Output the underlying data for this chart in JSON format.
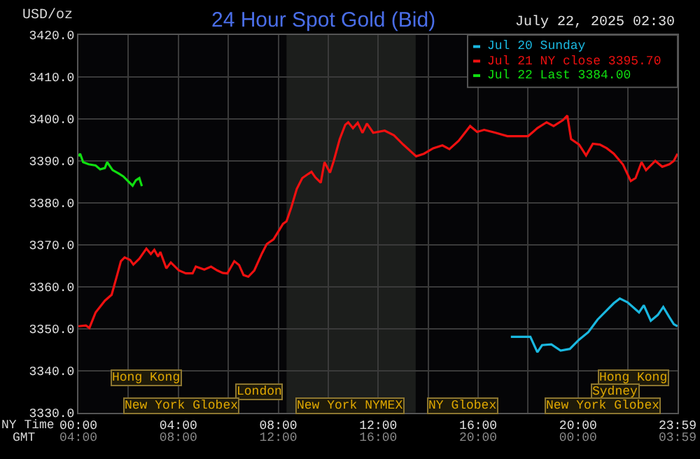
{
  "chart_data": {
    "type": "line",
    "title": "24 Hour Spot Gold (Bid)",
    "ylabel": "USD/oz",
    "xlabel": "NY Time",
    "x2label": "GMT",
    "annotations": [
      "July 22, 2025 02:30",
      "Hong Kong",
      "Hong Kong",
      "London",
      "Sydney",
      "New York Globex",
      "New York NYMEX",
      "NY Globex",
      "New York Globex"
    ],
    "xlim": [
      0,
      23.983
    ],
    "xticks": [
      {
        "value": 0,
        "label": "00:00"
      },
      {
        "value": 2,
        "label": null
      },
      {
        "value": 4,
        "label": "04:00"
      },
      {
        "value": 6,
        "label": null
      },
      {
        "value": 8,
        "label": "08:00"
      },
      {
        "value": 10,
        "label": null
      },
      {
        "value": 12,
        "label": "12:00"
      },
      {
        "value": 14,
        "label": null
      },
      {
        "value": 16,
        "label": "16:00"
      },
      {
        "value": 18,
        "label": null
      },
      {
        "value": 20,
        "label": "20:00"
      },
      {
        "value": 22,
        "label": null
      },
      {
        "value": 23.983,
        "label": "23:59"
      }
    ],
    "x2lim": [
      "2025-07-21T04:00",
      "2025-07-22T03:59"
    ],
    "x2ticks": [
      {
        "value": "2025-07-21T04:00",
        "label": "04:00"
      },
      {
        "value": "2025-07-21T08:00",
        "label": "08:00"
      },
      {
        "value": "2025-07-21T12:00",
        "label": "12:00"
      },
      {
        "value": "2025-07-21T16:00",
        "label": "16:00"
      },
      {
        "value": "2025-07-21T20:00",
        "label": "20:00"
      },
      {
        "value": "2025-07-22T00:00",
        "label": "00:00"
      },
      {
        "value": "2025-07-22T03:59",
        "label": "03:59"
      }
    ],
    "ylim": [
      3330,
      3420
    ],
    "yticks": [
      {
        "value": 3330,
        "label": "3330.0"
      },
      {
        "value": 3340,
        "label": "3340.0"
      },
      {
        "value": 3350,
        "label": "3350.0"
      },
      {
        "value": 3360,
        "label": "3360.0"
      },
      {
        "value": 3370,
        "label": "3370.0"
      },
      {
        "value": 3380,
        "label": "3380.0"
      },
      {
        "value": 3390,
        "label": "3390.0"
      },
      {
        "value": 3400,
        "label": "3400.0"
      },
      {
        "value": 3410,
        "label": "3410.0"
      },
      {
        "value": 3420,
        "label": "3420.0"
      }
    ],
    "grid": true,
    "legend": "top right",
    "line_style": "solid",
    "bands": [
      {
        "axis": "x",
        "from": 8.33,
        "to": 13.5,
        "color": "#1c1e1c"
      }
    ],
    "series": [
      {
        "name": "Jul 20 Sunday",
        "color": "#1ab8e0",
        "x": [
          17.31,
          18.09,
          18.37,
          18.56,
          18.93,
          19.3,
          19.67,
          20.04,
          20.41,
          20.78,
          21.15,
          21.43,
          21.67,
          21.98,
          22.44,
          22.63,
          22.91,
          23.19,
          23.41,
          23.65,
          23.83,
          23.98
        ],
        "values": [
          3348.1,
          3348.1,
          3344.4,
          3346.1,
          3346.3,
          3344.8,
          3345.2,
          3347.4,
          3349.2,
          3352.2,
          3354.4,
          3356.1,
          3357.2,
          3356.3,
          3353.9,
          3355.6,
          3351.9,
          3353.3,
          3355.2,
          3352.8,
          3351.1,
          3350.6
        ]
      },
      {
        "name": "Jul 21 NY close 3395.70",
        "color": "#f01010",
        "x": [
          0,
          0.3,
          0.44,
          0.69,
          1.06,
          1.33,
          1.56,
          1.7,
          1.85,
          2.07,
          2.2,
          2.44,
          2.72,
          2.9,
          3.04,
          3.19,
          3.28,
          3.52,
          3.7,
          4.02,
          4.3,
          4.57,
          4.7,
          5.04,
          5.31,
          5.56,
          5.78,
          5.96,
          6.24,
          6.43,
          6.61,
          6.8,
          7.04,
          7.35,
          7.54,
          7.81,
          8.19,
          8.33,
          8.52,
          8.74,
          8.96,
          9.2,
          9.33,
          9.48,
          9.7,
          9.85,
          10.07,
          10.22,
          10.46,
          10.68,
          10.8,
          10.99,
          11.18,
          11.37,
          11.55,
          11.8,
          12.26,
          12.63,
          13.0,
          13.52,
          13.83,
          14.2,
          14.57,
          14.85,
          15.22,
          15.68,
          15.96,
          16.24,
          16.7,
          17.17,
          18.0,
          18.37,
          18.74,
          19.02,
          19.39,
          19.57,
          19.72,
          20.04,
          20.32,
          20.59,
          20.87,
          21.15,
          21.43,
          21.8,
          22.11,
          22.3,
          22.54,
          22.72,
          23.09,
          23.37,
          23.65,
          23.83,
          23.98
        ],
        "values": [
          3350.6,
          3350.8,
          3350.2,
          3353.9,
          3356.7,
          3358.1,
          3363,
          3366.1,
          3367,
          3366.4,
          3365.3,
          3366.7,
          3369.1,
          3367.8,
          3368.8,
          3367.2,
          3368.3,
          3364.4,
          3365.8,
          3363.9,
          3363.2,
          3363.2,
          3364.8,
          3364.1,
          3364.8,
          3363.9,
          3363.3,
          3363.2,
          3366.1,
          3365.2,
          3362.8,
          3362.4,
          3363.9,
          3368,
          3370.2,
          3371.3,
          3375,
          3375.6,
          3378.9,
          3383.3,
          3385.9,
          3386.9,
          3387.4,
          3386.1,
          3384.8,
          3389.7,
          3387.2,
          3390,
          3395.2,
          3398.6,
          3399.2,
          3397.8,
          3399.1,
          3396.7,
          3398.9,
          3396.7,
          3397.2,
          3396.1,
          3393.9,
          3391.1,
          3391.7,
          3393,
          3393.7,
          3392.8,
          3394.8,
          3398.3,
          3396.9,
          3397.4,
          3396.7,
          3395.9,
          3395.9,
          3397.8,
          3399.2,
          3398.3,
          3399.7,
          3400.8,
          3395.2,
          3393.9,
          3391.3,
          3394.1,
          3393.9,
          3393,
          3391.7,
          3389.1,
          3385.2,
          3385.9,
          3389.7,
          3387.8,
          3390,
          3388.6,
          3389.2,
          3390,
          3391.7
        ]
      },
      {
        "name": "Jul 22 Last 3384.00",
        "color": "#10e010",
        "x": [
          0,
          0.07,
          0.19,
          0.41,
          0.69,
          0.87,
          1.06,
          1.15,
          1.37,
          1.61,
          1.8,
          1.98,
          2.17,
          2.3,
          2.44,
          2.54
        ],
        "values": [
          3391.1,
          3391.7,
          3389.7,
          3389.2,
          3388.9,
          3388,
          3388.3,
          3389.7,
          3387.8,
          3387,
          3386.3,
          3385.2,
          3384.1,
          3385.4,
          3385.9,
          3384.0
        ]
      }
    ]
  }
}
